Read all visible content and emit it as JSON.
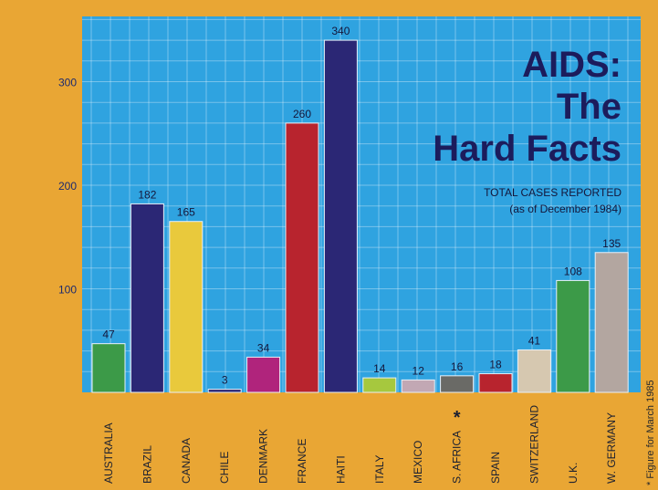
{
  "chart_data": {
    "type": "bar",
    "title_lines": [
      "AIDS:",
      "The",
      "Hard Facts"
    ],
    "subtitle_lines": [
      "TOTAL CASES REPORTED",
      "(as of December 1984)"
    ],
    "categories": [
      "AUSTRALIA",
      "BRAZIL",
      "CANADA",
      "CHILE",
      "DENMARK",
      "FRANCE",
      "HAITI",
      "ITALY",
      "MEXICO",
      "S. AFRICA",
      "SPAIN",
      "SWITZERLAND",
      "U.K.",
      "W. GERMANY"
    ],
    "values": [
      47,
      182,
      165,
      3,
      34,
      260,
      340,
      14,
      12,
      16,
      18,
      41,
      108,
      135
    ],
    "value_labels": [
      "47",
      "182",
      "165",
      "3",
      "34",
      "260",
      "340",
      "14",
      "12",
      "16",
      "18",
      "41",
      "108",
      "135"
    ],
    "colors": [
      "#3c9a48",
      "#2b2775",
      "#e9c93c",
      "#2b2775",
      "#b0247c",
      "#b8242e",
      "#2b2775",
      "#a6c83e",
      "#c2a8b4",
      "#6a6a66",
      "#b8242e",
      "#d6c8b0",
      "#3c9a48",
      "#b3a6a0"
    ],
    "marked_category_index": 9,
    "marker_symbol": "*",
    "yticks": [
      100,
      200,
      300
    ],
    "ytick_labels": [
      "100",
      "200",
      "300"
    ],
    "ylim": [
      0,
      370
    ],
    "grid": true,
    "plot_background": "#2fa3e0",
    "frame_color": "#e9a634",
    "footnote": "* Figure for March 1985"
  }
}
